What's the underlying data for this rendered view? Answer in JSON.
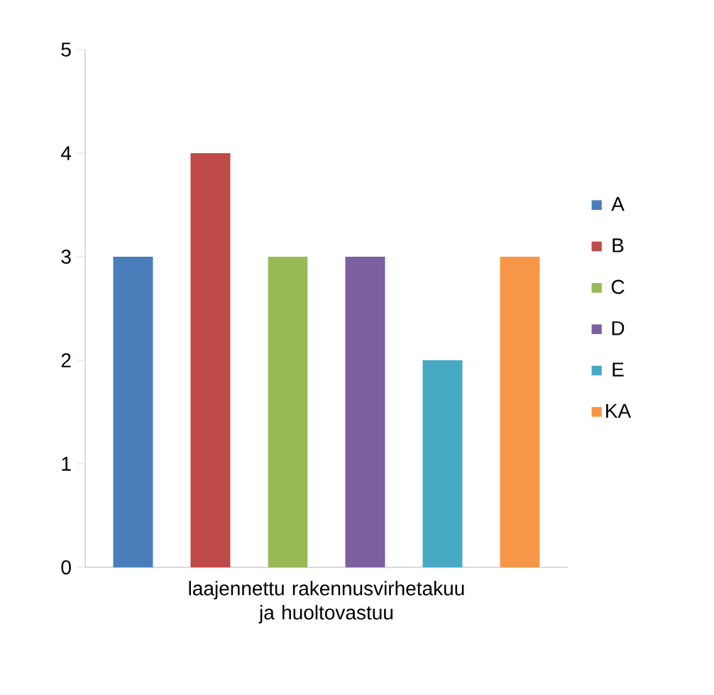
{
  "chart_data": {
    "type": "bar",
    "categories": [
      "laajennettu rakennusvirhetakuu ja huoltovastuu"
    ],
    "series": [
      {
        "name": "A",
        "color": "#4a7ebb",
        "values": [
          3
        ]
      },
      {
        "name": "B",
        "color": "#be4b48",
        "values": [
          4
        ]
      },
      {
        "name": "C",
        "color": "#98b954",
        "values": [
          3
        ]
      },
      {
        "name": "D",
        "color": "#7d60a0",
        "values": [
          3
        ]
      },
      {
        "name": "E",
        "color": "#46aac5",
        "values": [
          2
        ]
      },
      {
        "name": "KA",
        "color": "#f79646",
        "values": [
          3
        ]
      }
    ],
    "ylim": [
      0,
      5
    ],
    "yticks": [
      0,
      1,
      2,
      3,
      4,
      5
    ],
    "grid": false,
    "legend": "right"
  }
}
